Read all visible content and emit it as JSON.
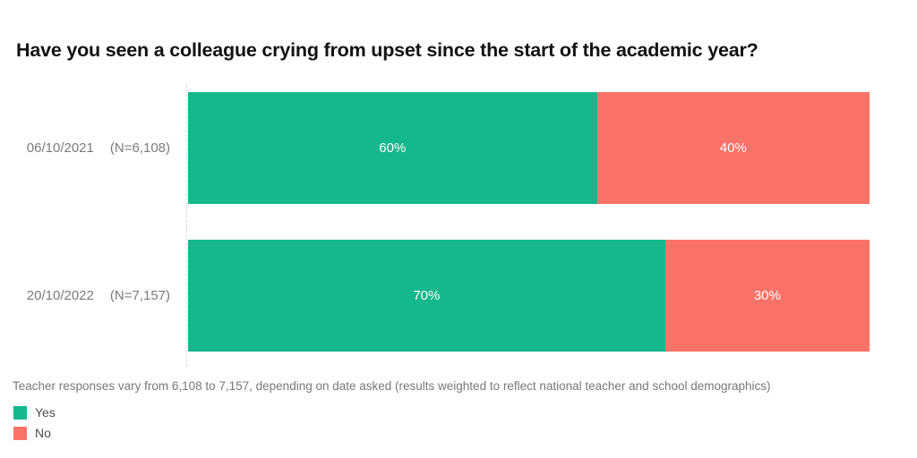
{
  "title": "Have you seen a colleague crying from upset since the start of the academic year?",
  "colors": {
    "yes": "#15b88d",
    "no": "#fb7268"
  },
  "rows": [
    {
      "date": "06/10/2021",
      "n": "(N=6,108)",
      "yes_pct": 60,
      "no_pct": 40,
      "yes_label": "60%",
      "no_label": "40%"
    },
    {
      "date": "20/10/2022",
      "n": "(N=7,157)",
      "yes_pct": 70,
      "no_pct": 30,
      "yes_label": "70%",
      "no_label": "30%"
    }
  ],
  "footnote": "Teacher responses vary from 6,108 to 7,157, depending on date asked (results weighted to reflect national teacher and school demographics)",
  "legend": [
    {
      "label": "Yes",
      "color": "#15b88d"
    },
    {
      "label": "No",
      "color": "#fb7268"
    }
  ],
  "chart_data": {
    "type": "bar",
    "orientation": "horizontal",
    "stacked": true,
    "title": "Have you seen a colleague crying from upset since the start of the academic year?",
    "categories": [
      "06/10/2021 (N=6,108)",
      "20/10/2022 (N=7,157)"
    ],
    "series": [
      {
        "name": "Yes",
        "values": [
          60,
          70
        ],
        "color": "#15b88d"
      },
      {
        "name": "No",
        "values": [
          40,
          30
        ],
        "color": "#fb7268"
      }
    ],
    "value_format": "percent",
    "xlim": [
      0,
      100
    ],
    "grid": false,
    "legend_position": "bottom-left",
    "annotation": "Teacher responses vary from 6,108 to 7,157, depending on date asked (results weighted to reflect national teacher and school demographics)"
  }
}
